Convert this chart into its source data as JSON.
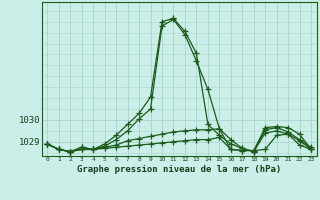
{
  "bg_color": "#cceee8",
  "grid_color": "#aad4cc",
  "line_color": "#1a5c1a",
  "text_color": "#1a3d1a",
  "xlabel": "Graphe pression niveau de la mer (hPa)",
  "ylabel_ticks": [
    1029,
    1030
  ],
  "xlim": [
    -0.5,
    23.5
  ],
  "ylim": [
    1028.35,
    1035.4
  ],
  "xticks": [
    0,
    1,
    2,
    3,
    4,
    5,
    6,
    7,
    8,
    9,
    10,
    11,
    12,
    13,
    14,
    15,
    16,
    17,
    18,
    19,
    20,
    21,
    22,
    23
  ],
  "series": [
    {
      "x": [
        0,
        1,
        2,
        3,
        4,
        5,
        6,
        7,
        8,
        9,
        10,
        11,
        12,
        13,
        14,
        15,
        16,
        17,
        18,
        19,
        20,
        21,
        22,
        23
      ],
      "y": [
        1028.9,
        1028.65,
        1028.55,
        1028.75,
        1028.65,
        1028.8,
        1029.1,
        1029.5,
        1030.05,
        1030.5,
        1034.3,
        1034.6,
        1033.9,
        1032.7,
        1031.4,
        1029.6,
        1029.1,
        1028.7,
        1028.55,
        1029.4,
        1029.5,
        1029.35,
        1028.85,
        1028.65
      ]
    },
    {
      "x": [
        0,
        1,
        2,
        3,
        4,
        5,
        6,
        7,
        8,
        9,
        10,
        11,
        12,
        13,
        14,
        15,
        16,
        17,
        18,
        19,
        20,
        21,
        22,
        23
      ],
      "y": [
        1028.9,
        1028.65,
        1028.55,
        1028.75,
        1028.65,
        1028.9,
        1029.3,
        1029.8,
        1030.3,
        1031.05,
        1034.5,
        1034.65,
        1034.05,
        1033.05,
        1029.8,
        1029.3,
        1028.9,
        1028.7,
        1028.55,
        1029.55,
        1029.65,
        1029.45,
        1029.1,
        1028.75
      ]
    },
    {
      "x": [
        0,
        1,
        2,
        3,
        4,
        5,
        6,
        7,
        8,
        9,
        10,
        11,
        12,
        13,
        14,
        15,
        16,
        17,
        18,
        19,
        20,
        21,
        22,
        23
      ],
      "y": [
        1028.9,
        1028.65,
        1028.55,
        1028.65,
        1028.65,
        1028.75,
        1028.85,
        1029.05,
        1029.15,
        1029.25,
        1029.35,
        1029.45,
        1029.5,
        1029.55,
        1029.55,
        1029.6,
        1028.65,
        1028.6,
        1028.6,
        1029.65,
        1029.7,
        1029.65,
        1029.35,
        1028.65
      ]
    },
    {
      "x": [
        0,
        1,
        2,
        3,
        4,
        5,
        6,
        7,
        8,
        9,
        10,
        11,
        12,
        13,
        14,
        15,
        16,
        17,
        18,
        19,
        20,
        21,
        22,
        23
      ],
      "y": [
        1028.9,
        1028.65,
        1028.55,
        1028.65,
        1028.65,
        1028.7,
        1028.75,
        1028.8,
        1028.85,
        1028.9,
        1028.95,
        1029.0,
        1029.05,
        1029.1,
        1029.1,
        1029.2,
        1028.65,
        1028.6,
        1028.6,
        1028.65,
        1029.3,
        1029.35,
        1029.05,
        1028.65
      ]
    }
  ]
}
